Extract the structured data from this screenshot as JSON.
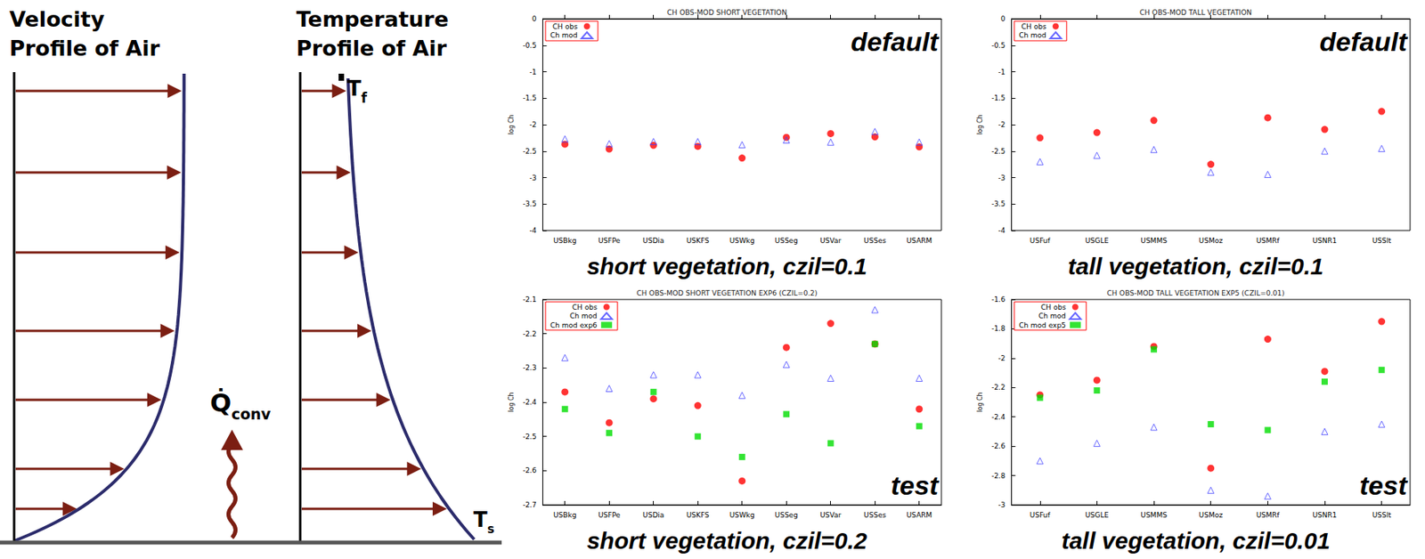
{
  "diagram": {
    "velocity_title": [
      "Velocity",
      "Profile of Air"
    ],
    "temperature_title": [
      "Temperature",
      "Profile of Air"
    ],
    "top_temperature": {
      "symbol": "T",
      "subscript": "f"
    },
    "surface_temperature": {
      "symbol": "T",
      "subscript": "s"
    },
    "heat_flux": {
      "symbol": "Q̇",
      "subscript": "conv"
    }
  },
  "chart_data": [
    {
      "type": "scatter",
      "title": "CH OBS-MOD SHORT VEGETATION",
      "y_label": "log Ch",
      "annotation": "default",
      "subtitle": "short vegetation, czil=0.1",
      "categories": [
        "USBkg",
        "USFPe",
        "USDia",
        "USKFS",
        "USWkg",
        "USSeg",
        "USVar",
        "USSes",
        "USARM"
      ],
      "series": [
        {
          "name": "CH obs",
          "color": "#ff0000",
          "marker": "circle",
          "values": [
            -2.37,
            -2.46,
            -2.39,
            -2.41,
            -2.63,
            -2.24,
            -2.17,
            -2.23,
            -2.42
          ]
        },
        {
          "name": "Ch mod",
          "color": "#4040ff",
          "marker": "open_triangle",
          "values": [
            -2.27,
            -2.36,
            -2.32,
            -2.32,
            -2.38,
            -2.29,
            -2.33,
            -2.13,
            -2.33
          ]
        }
      ],
      "ylim": [
        -4,
        0
      ],
      "yticks": [
        -4,
        -3.5,
        -3,
        -2.5,
        -2,
        -1.5,
        -1,
        -0.5,
        0
      ],
      "legend": "upper left",
      "grid": false
    },
    {
      "type": "scatter",
      "title": "CH OBS-MOD TALL VEGETATION",
      "y_label": "log Ch",
      "annotation": "default",
      "subtitle": "tall vegetation, czil=0.1",
      "categories": [
        "USFuf",
        "USGLE",
        "USMMS",
        "USMoz",
        "USMRf",
        "USNR1",
        "USSlt"
      ],
      "series": [
        {
          "name": "CH obs",
          "color": "#ff0000",
          "marker": "circle",
          "values": [
            -2.25,
            -2.15,
            -1.92,
            -2.75,
            -1.87,
            -2.09,
            -1.75
          ]
        },
        {
          "name": "Ch mod",
          "color": "#4040ff",
          "marker": "open_triangle",
          "values": [
            -2.7,
            -2.58,
            -2.47,
            -2.9,
            -2.94,
            -2.5,
            -2.45
          ]
        }
      ],
      "ylim": [
        -4,
        0
      ],
      "yticks": [
        -4,
        -3.5,
        -3,
        -2.5,
        -2,
        -1.5,
        -1,
        -0.5,
        0
      ],
      "legend": "upper left",
      "grid": false
    },
    {
      "type": "scatter",
      "title": "CH OBS-MOD SHORT VEGETATION EXP6 (CZIL=0.2)",
      "y_label": "log Ch",
      "annotation": "test",
      "subtitle": "short vegetation, czil=0.2",
      "categories": [
        "USBkg",
        "USFPe",
        "USDia",
        "USKFS",
        "USWkg",
        "USSeg",
        "USVar",
        "USSes",
        "USARM"
      ],
      "series": [
        {
          "name": "CH obs",
          "color": "#ff0000",
          "marker": "circle",
          "values": [
            -2.37,
            -2.46,
            -2.39,
            -2.41,
            -2.63,
            -2.24,
            -2.17,
            -2.23,
            -2.42
          ]
        },
        {
          "name": "Ch mod",
          "color": "#4040ff",
          "marker": "open_triangle",
          "values": [
            -2.27,
            -2.36,
            -2.32,
            -2.32,
            -2.38,
            -2.29,
            -2.33,
            -2.13,
            -2.33
          ]
        },
        {
          "name": "Ch mod exp6",
          "color": "#00dd00",
          "marker": "square",
          "values": [
            -2.42,
            -2.49,
            -2.37,
            -2.5,
            -2.56,
            -2.435,
            -2.52,
            -2.23,
            -2.47
          ]
        }
      ],
      "ylim": [
        -2.7,
        -2.1
      ],
      "yticks": [
        -2.7,
        -2.6,
        -2.5,
        -2.4,
        -2.3,
        -2.2,
        -2.1
      ],
      "legend": "upper left",
      "grid": false
    },
    {
      "type": "scatter",
      "title": "CH OBS-MOD TALL VEGETATION EXP5 (CZIL=0.01)",
      "y_label": "log Ch",
      "annotation": "test",
      "subtitle": "tall vegetation, czil=0.01",
      "categories": [
        "USFuf",
        "USGLE",
        "USMMS",
        "USMoz",
        "USMRf",
        "USNR1",
        "USSlt"
      ],
      "series": [
        {
          "name": "CH obs",
          "color": "#ff0000",
          "marker": "circle",
          "values": [
            -2.25,
            -2.15,
            -1.92,
            -2.75,
            -1.87,
            -2.09,
            -1.75
          ]
        },
        {
          "name": "Ch mod",
          "color": "#4040ff",
          "marker": "open_triangle",
          "values": [
            -2.7,
            -2.58,
            -2.47,
            -2.9,
            -2.94,
            -2.5,
            -2.45
          ]
        },
        {
          "name": "Ch mod exp5",
          "color": "#00dd00",
          "marker": "square",
          "values": [
            -2.27,
            -2.22,
            -1.94,
            -2.45,
            -2.49,
            -2.16,
            -2.08
          ]
        }
      ],
      "ylim": [
        -3,
        -1.6
      ],
      "yticks": [
        -3,
        -2.8,
        -2.6,
        -2.4,
        -2.2,
        -2,
        -1.8,
        -1.6
      ],
      "legend": "upper left",
      "grid": false
    }
  ]
}
